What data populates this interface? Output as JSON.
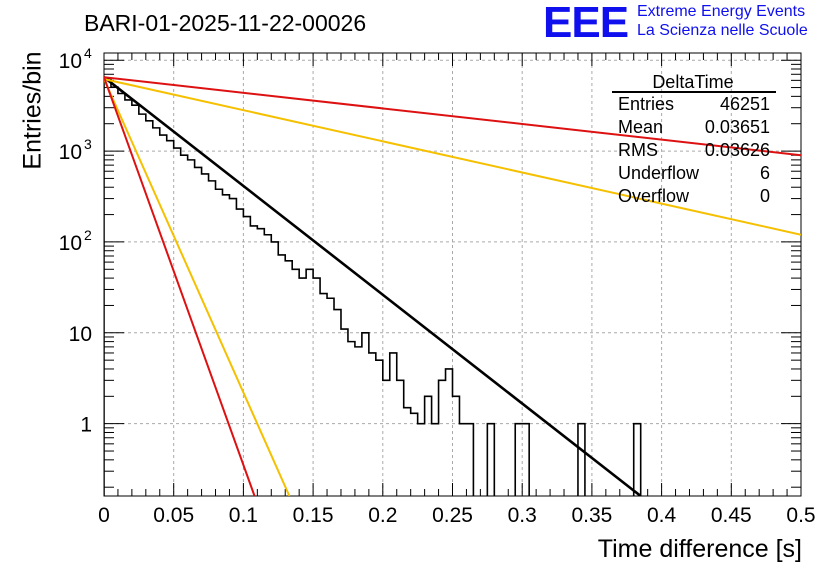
{
  "header": {
    "title": "BARI-01-2025-11-22-00026",
    "logo_mark": "EEE",
    "logo_line1": "Extreme Energy Events",
    "logo_line2": "La Scienza nelle Scuole"
  },
  "stats_box": {
    "name": "DeltaTime",
    "rows": [
      {
        "label": "Entries",
        "value": "46251"
      },
      {
        "label": "Mean",
        "value": "0.03651"
      },
      {
        "label": "RMS",
        "value": "0.03626"
      },
      {
        "label": "Underflow",
        "value": "6"
      },
      {
        "label": "Overflow",
        "value": "0"
      }
    ]
  },
  "colors": {
    "histogram": "#000000",
    "fit": "#000000",
    "red_lines": "#dd1111",
    "yellow_lines": "#f5c000",
    "logo": "#1010ee",
    "grid": "#aaaaaa"
  },
  "chart_data": {
    "type": "histogram",
    "title": "BARI-01-2025-11-22-00026",
    "xlabel": "Time difference [s]",
    "ylabel": "Entries/bin",
    "xlim": [
      0,
      0.5
    ],
    "ylim": [
      0.16,
      12000
    ],
    "yscale": "log",
    "grid": true,
    "legend_position": "top-right",
    "x_ticks": [
      0,
      0.05,
      0.1,
      0.15,
      0.2,
      0.25,
      0.3,
      0.35,
      0.4,
      0.45,
      0.5
    ],
    "x_tick_labels": [
      "0",
      "0.05",
      "0.1",
      "0.15",
      "0.2",
      "0.25",
      "0.3",
      "0.35",
      "0.4",
      "0.45",
      "0.5"
    ],
    "y_ticks": [
      {
        "value": 1,
        "label": "1",
        "exp": ""
      },
      {
        "value": 10,
        "label": "10",
        "exp": ""
      },
      {
        "value": 100,
        "label": "10",
        "exp": "2"
      },
      {
        "value": 1000,
        "label": "10",
        "exp": "3"
      },
      {
        "value": 10000,
        "label": "10",
        "exp": "4"
      }
    ],
    "bin_width": 0.005,
    "bin_counts": [
      6300,
      5050,
      4300,
      3650,
      3200,
      2550,
      2150,
      1800,
      1500,
      1300,
      1080,
      900,
      800,
      660,
      560,
      470,
      380,
      330,
      300,
      230,
      190,
      150,
      140,
      120,
      100,
      72,
      62,
      50,
      40,
      50,
      40,
      27,
      24,
      18,
      11,
      8,
      7,
      10,
      6,
      5,
      3,
      6,
      3,
      1.5,
      1.3,
      1,
      2,
      1,
      3,
      4,
      2,
      1,
      1,
      0,
      0,
      1,
      0,
      0,
      0,
      1,
      1,
      0,
      0,
      0,
      0,
      0,
      0,
      0,
      1,
      0,
      0,
      0,
      0,
      0,
      0,
      0,
      1,
      0,
      0,
      0,
      0,
      0,
      0,
      0,
      0,
      0,
      0,
      0,
      0,
      0,
      0,
      0,
      0,
      0,
      0,
      0,
      0,
      0,
      0,
      0
    ],
    "series": [
      {
        "name": "fit",
        "color": "#000000",
        "x": [
          0.0,
          0.385
        ],
        "y": [
          6500,
          0.16
        ]
      },
      {
        "name": "red-slow",
        "color": "#dd1111",
        "x": [
          0.0,
          0.5
        ],
        "y": [
          6500,
          900
        ]
      },
      {
        "name": "yellow-slow",
        "color": "#f5c000",
        "x": [
          0.0,
          0.5
        ],
        "y": [
          6200,
          120
        ]
      },
      {
        "name": "yellow-fast",
        "color": "#f5c000",
        "x": [
          0.0,
          0.133
        ],
        "y": [
          6200,
          0.16
        ]
      },
      {
        "name": "red-fast",
        "color": "#dd1111",
        "x": [
          0.0,
          0.108
        ],
        "y": [
          6500,
          0.16
        ]
      }
    ]
  }
}
